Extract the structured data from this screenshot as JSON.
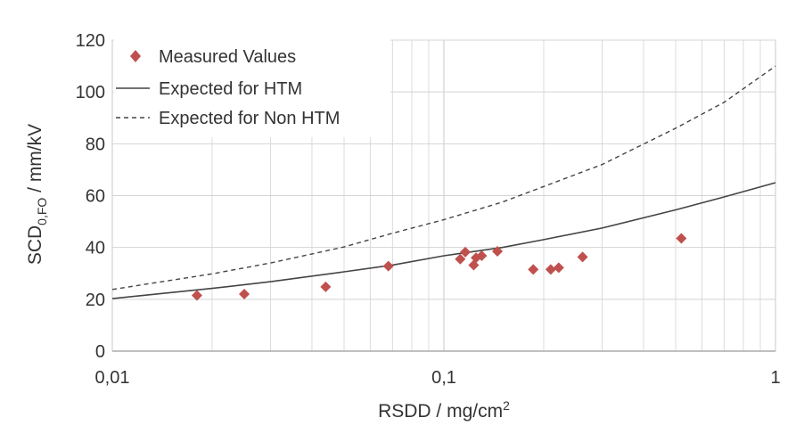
{
  "chart_data": {
    "type": "scatter",
    "xscale": "log",
    "xlim": [
      0.01,
      1
    ],
    "ylim": [
      0,
      120
    ],
    "grid": true,
    "legend_position": "top-left",
    "xlabel": {
      "main": "RSDD / mg/cm",
      "sup": "2"
    },
    "ylabel": {
      "main": "SCD",
      "sub": "0,FO",
      "tail": " / mm/kV"
    },
    "x_ticks": [
      {
        "value": 0.01,
        "label": "0,01"
      },
      {
        "value": 0.1,
        "label": "0,1"
      },
      {
        "value": 1,
        "label": "1"
      }
    ],
    "y_ticks": [
      {
        "value": 0,
        "label": "0"
      },
      {
        "value": 20,
        "label": "20"
      },
      {
        "value": 40,
        "label": "40"
      },
      {
        "value": 60,
        "label": "60"
      },
      {
        "value": 80,
        "label": "80"
      },
      {
        "value": 100,
        "label": "100"
      },
      {
        "value": 120,
        "label": "120"
      }
    ],
    "series": [
      {
        "name": "Measured Values",
        "kind": "markers",
        "color": "#c0504d",
        "points": [
          {
            "x": 0.018,
            "y": 21.5
          },
          {
            "x": 0.025,
            "y": 22
          },
          {
            "x": 0.044,
            "y": 24.8
          },
          {
            "x": 0.068,
            "y": 32.8
          },
          {
            "x": 0.112,
            "y": 35.5
          },
          {
            "x": 0.116,
            "y": 38.2
          },
          {
            "x": 0.123,
            "y": 33.2
          },
          {
            "x": 0.125,
            "y": 36
          },
          {
            "x": 0.13,
            "y": 36.8
          },
          {
            "x": 0.145,
            "y": 38.5
          },
          {
            "x": 0.186,
            "y": 31.5
          },
          {
            "x": 0.21,
            "y": 31.5
          },
          {
            "x": 0.222,
            "y": 32.2
          },
          {
            "x": 0.262,
            "y": 36.3
          },
          {
            "x": 0.52,
            "y": 43.5
          }
        ]
      },
      {
        "name": "Expected for HTM",
        "kind": "line",
        "dash": "solid",
        "color": "#444444",
        "points": [
          {
            "x": 0.01,
            "y": 20.3
          },
          {
            "x": 0.02,
            "y": 24.2
          },
          {
            "x": 0.03,
            "y": 26.8
          },
          {
            "x": 0.05,
            "y": 30.6
          },
          {
            "x": 0.07,
            "y": 33.2
          },
          {
            "x": 0.1,
            "y": 36.8
          },
          {
            "x": 0.15,
            "y": 40
          },
          {
            "x": 0.2,
            "y": 43
          },
          {
            "x": 0.3,
            "y": 47.5
          },
          {
            "x": 0.5,
            "y": 54.5
          },
          {
            "x": 0.7,
            "y": 59.5
          },
          {
            "x": 1,
            "y": 65
          }
        ]
      },
      {
        "name": "Expected for Non HTM",
        "kind": "line",
        "dash": "dashed",
        "color": "#444444",
        "points": [
          {
            "x": 0.01,
            "y": 23.8
          },
          {
            "x": 0.02,
            "y": 29.8
          },
          {
            "x": 0.03,
            "y": 34
          },
          {
            "x": 0.05,
            "y": 40.2
          },
          {
            "x": 0.07,
            "y": 45.5
          },
          {
            "x": 0.1,
            "y": 50.7
          },
          {
            "x": 0.15,
            "y": 57.5
          },
          {
            "x": 0.2,
            "y": 63.5
          },
          {
            "x": 0.3,
            "y": 72
          },
          {
            "x": 0.5,
            "y": 86
          },
          {
            "x": 0.7,
            "y": 96
          },
          {
            "x": 1,
            "y": 110
          }
        ]
      }
    ]
  }
}
